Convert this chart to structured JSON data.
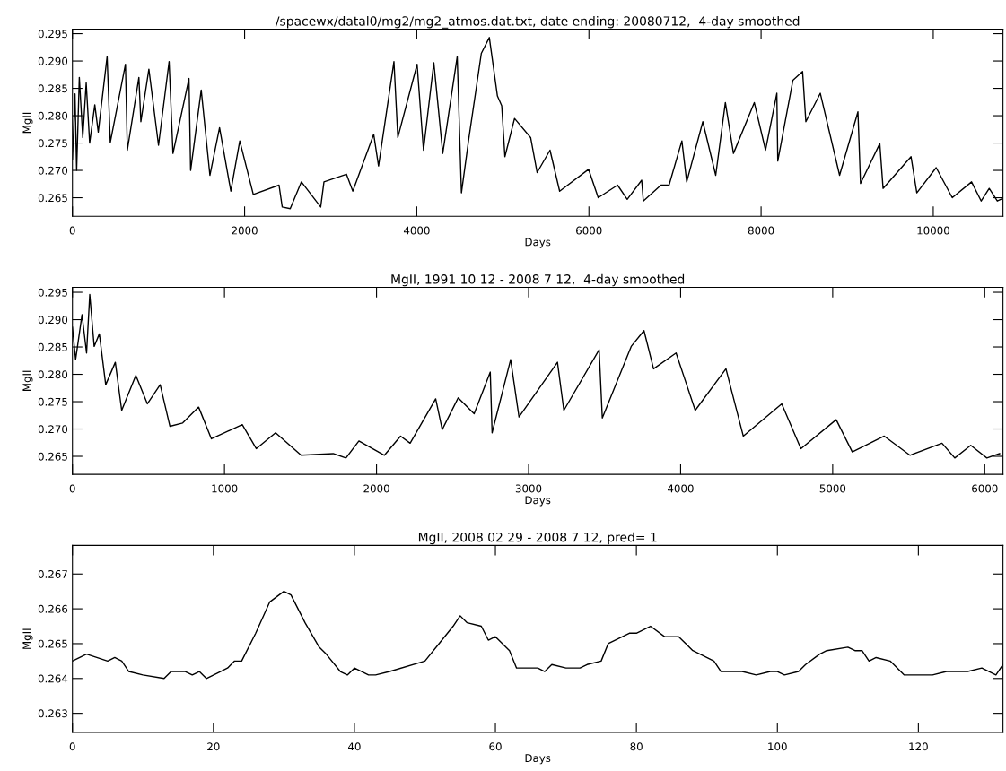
{
  "chart_data": [
    {
      "type": "line",
      "title": "/spacewx/datal0/mg2/mg2_atmos.dat.txt, date ending: 20080712,  4-day smoothed",
      "xlabel": "Days",
      "ylabel": "MgII",
      "grid": false,
      "marker": "none",
      "line_style": "solid",
      "xlim": [
        0,
        10810
      ],
      "ylim": [
        0.2616,
        0.2958
      ],
      "xticks": [
        0,
        2000,
        4000,
        6000,
        8000,
        10000
      ],
      "yticks": [
        {
          "value": 0.265,
          "label": "0.265"
        },
        {
          "value": 0.27,
          "label": "0.270"
        },
        {
          "value": 0.275,
          "label": "0.275"
        },
        {
          "value": 0.28,
          "label": "0.280"
        },
        {
          "value": 0.285,
          "label": "0.285"
        },
        {
          "value": 0.29,
          "label": "0.290"
        },
        {
          "value": 0.295,
          "label": "0.295"
        }
      ],
      "series": [
        {
          "color": "#000000",
          "x": [
            0,
            30,
            49,
            80,
            120,
            160,
            200,
            260,
            300,
            403,
            440,
            616,
            638,
            772,
            795,
            888,
            1000,
            1123,
            1168,
            1354,
            1373,
            1496,
            1597,
            1709,
            1840,
            1944,
            2101,
            2400,
            2437,
            2530,
            2660,
            2884,
            2922,
            3183,
            3257,
            3500,
            3556,
            3735,
            3780,
            4004,
            4078,
            4198,
            4302,
            4470,
            4519,
            4601,
            4750,
            4843,
            4937,
            4987,
            5024,
            5136,
            5323,
            5398,
            5548,
            5660,
            5996,
            6108,
            6333,
            6445,
            6613,
            6632,
            6837,
            6931,
            7080,
            7136,
            7323,
            7473,
            7585,
            7679,
            7921,
            8052,
            8183,
            8194,
            8370,
            8482,
            8520,
            8688,
            8912,
            9125,
            9155,
            9379,
            9417,
            9742,
            9809,
            10034,
            10221,
            10445,
            10557,
            10650,
            10744,
            10800
          ],
          "values": [
            0.272,
            0.284,
            0.27,
            0.287,
            0.276,
            0.286,
            0.275,
            0.282,
            0.277,
            0.2908,
            0.2751,
            0.2894,
            0.2737,
            0.287,
            0.2789,
            0.2885,
            0.2746,
            0.2899,
            0.2731,
            0.2868,
            0.27,
            0.2847,
            0.2691,
            0.2778,
            0.2662,
            0.2754,
            0.2656,
            0.2673,
            0.2633,
            0.263,
            0.2679,
            0.2633,
            0.2679,
            0.2693,
            0.2662,
            0.2766,
            0.2708,
            0.2899,
            0.276,
            0.2894,
            0.2737,
            0.2897,
            0.2731,
            0.2908,
            0.2659,
            0.2754,
            0.2914,
            0.2943,
            0.2836,
            0.2818,
            0.2725,
            0.2795,
            0.276,
            0.2696,
            0.2737,
            0.2662,
            0.2702,
            0.265,
            0.2673,
            0.2647,
            0.2682,
            0.2644,
            0.2673,
            0.2673,
            0.2754,
            0.2679,
            0.2789,
            0.2691,
            0.2824,
            0.2731,
            0.2824,
            0.2737,
            0.2841,
            0.2717,
            0.2865,
            0.2881,
            0.2789,
            0.2841,
            0.2691,
            0.2807,
            0.2676,
            0.2749,
            0.2667,
            0.2725,
            0.2659,
            0.2705,
            0.265,
            0.2679,
            0.2644,
            0.2667,
            0.2644,
            0.2648
          ]
        }
      ]
    },
    {
      "type": "line",
      "title": "MgII, 1991 10 12 - 2008 7 12,  4-day smoothed",
      "xlabel": "Days",
      "ylabel": "MgII",
      "grid": false,
      "marker": "none",
      "line_style": "solid",
      "xlim": [
        0,
        6120
      ],
      "ylim": [
        0.2617,
        0.2959
      ],
      "xticks": [
        0,
        1000,
        2000,
        3000,
        4000,
        5000,
        6000
      ],
      "yticks": [
        {
          "value": 0.265,
          "label": "0.265"
        },
        {
          "value": 0.27,
          "label": "0.270"
        },
        {
          "value": 0.275,
          "label": "0.275"
        },
        {
          "value": 0.28,
          "label": "0.280"
        },
        {
          "value": 0.285,
          "label": "0.285"
        },
        {
          "value": 0.29,
          "label": "0.290"
        },
        {
          "value": 0.295,
          "label": "0.295"
        }
      ],
      "series": [
        {
          "color": "#000000",
          "x": [
            0,
            21,
            63,
            93,
            114,
            143,
            177,
            219,
            282,
            324,
            417,
            493,
            577,
            641,
            725,
            830,
            914,
            1117,
            1209,
            1336,
            1504,
            1715,
            1799,
            1884,
            2052,
            2158,
            2221,
            2389,
            2432,
            2537,
            2642,
            2748,
            2760,
            2882,
            2937,
            3190,
            3232,
            3464,
            3485,
            3675,
            3759,
            3822,
            3970,
            4096,
            4298,
            4412,
            4665,
            4791,
            5023,
            5129,
            5339,
            5508,
            5719,
            5803,
            5908,
            6014,
            6098
          ],
          "values": [
            0.2886,
            0.2827,
            0.2909,
            0.2839,
            0.2946,
            0.2851,
            0.2874,
            0.2781,
            0.2822,
            0.2734,
            0.2798,
            0.2746,
            0.2781,
            0.2705,
            0.2711,
            0.274,
            0.2682,
            0.2708,
            0.2664,
            0.2693,
            0.2652,
            0.2655,
            0.2647,
            0.2678,
            0.2652,
            0.2687,
            0.2674,
            0.2755,
            0.2699,
            0.2757,
            0.2728,
            0.2804,
            0.2693,
            0.2827,
            0.2722,
            0.2822,
            0.2734,
            0.2845,
            0.272,
            0.2851,
            0.288,
            0.281,
            0.2839,
            0.2734,
            0.281,
            0.2687,
            0.2746,
            0.2664,
            0.2717,
            0.2658,
            0.2687,
            0.2652,
            0.2674,
            0.2647,
            0.267,
            0.2647,
            0.2655
          ]
        }
      ]
    },
    {
      "type": "line",
      "title": "MgII, 2008 02 29 - 2008 7 12, pred= 1",
      "xlabel": "Days",
      "ylabel": "MgII",
      "grid": false,
      "marker": "none",
      "line_style": "solid",
      "xlim": [
        0,
        132
      ],
      "ylim": [
        0.26245,
        0.26782
      ],
      "xticks": [
        0,
        20,
        40,
        60,
        80,
        100,
        120
      ],
      "yticks": [
        0.263,
        0.264,
        0.265,
        0.266,
        0.267
      ],
      "series": [
        {
          "color": "#000000",
          "x": [
            0,
            2,
            5,
            6,
            7,
            8,
            10,
            13,
            14,
            16,
            17,
            18,
            19,
            21,
            22,
            23,
            24,
            26,
            28,
            30,
            31,
            33,
            35,
            36,
            38,
            39,
            40,
            42,
            43,
            45,
            50,
            52,
            54,
            55,
            56,
            58,
            59,
            60,
            62,
            63,
            66,
            67,
            68,
            70,
            72,
            73,
            75,
            76,
            79,
            80,
            82,
            84,
            86,
            88,
            91,
            92,
            95,
            97,
            99,
            100,
            101,
            103,
            104,
            106,
            107,
            110,
            111,
            112,
            113,
            114,
            116,
            118,
            120,
            122,
            124,
            127,
            129,
            131,
            132
          ],
          "values": [
            0.2645,
            0.2647,
            0.2645,
            0.2646,
            0.2645,
            0.2642,
            0.2641,
            0.264,
            0.2642,
            0.2642,
            0.2641,
            0.2642,
            0.264,
            0.2642,
            0.2643,
            0.2645,
            0.2645,
            0.2653,
            0.2662,
            0.2665,
            0.2664,
            0.2656,
            0.2649,
            0.2647,
            0.2642,
            0.2641,
            0.2643,
            0.2641,
            0.2641,
            0.2642,
            0.2645,
            0.265,
            0.2655,
            0.2658,
            0.2656,
            0.2655,
            0.2651,
            0.2652,
            0.2648,
            0.2643,
            0.2643,
            0.2642,
            0.2644,
            0.2643,
            0.2643,
            0.2644,
            0.2645,
            0.265,
            0.2653,
            0.2653,
            0.2655,
            0.2652,
            0.2652,
            0.2648,
            0.2645,
            0.2642,
            0.2642,
            0.2641,
            0.2642,
            0.2642,
            0.2641,
            0.2642,
            0.2644,
            0.2647,
            0.2648,
            0.2649,
            0.2648,
            0.2648,
            0.2645,
            0.2646,
            0.2645,
            0.2641,
            0.2641,
            0.2641,
            0.2642,
            0.2642,
            0.2643,
            0.2641,
            0.2644
          ]
        }
      ]
    }
  ]
}
